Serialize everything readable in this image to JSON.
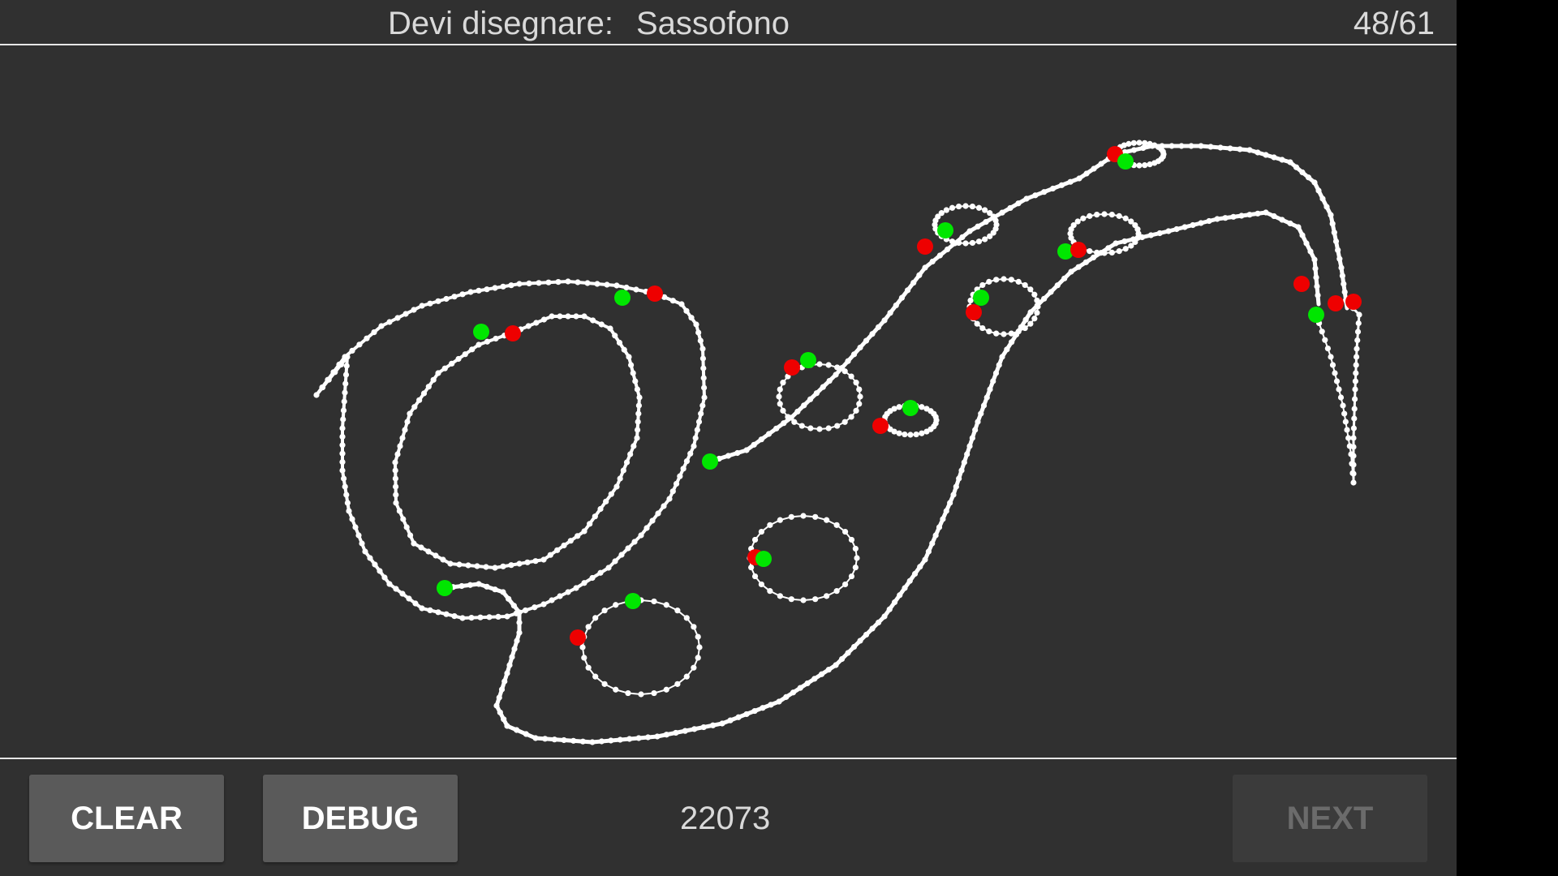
{
  "header": {
    "prompt_label": "Devi disegnare:",
    "prompt_word": "Sassofono",
    "progress": "48/61"
  },
  "footer": {
    "clear_label": "CLEAR",
    "debug_label": "DEBUG",
    "score": "22073",
    "next_label": "NEXT",
    "next_enabled": false
  },
  "colors": {
    "background": "#303030",
    "stroke": "#ffffff",
    "stroke_start": "#00e600",
    "stroke_end": "#ee0000",
    "button": "#5a5a5a",
    "button_disabled": "#3b3b3b"
  }
}
